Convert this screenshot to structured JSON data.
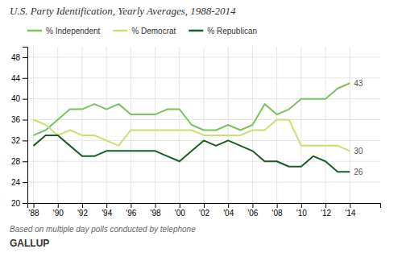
{
  "chart_data": {
    "type": "line",
    "title": "U.S. Party Identification, Yearly Averages, 1988-2014",
    "x": [
      1988,
      1989,
      1990,
      1991,
      1992,
      1993,
      1994,
      1995,
      1996,
      1997,
      1998,
      1999,
      2000,
      2001,
      2002,
      2003,
      2004,
      2005,
      2006,
      2007,
      2008,
      2009,
      2010,
      2011,
      2012,
      2013,
      2014
    ],
    "series": [
      {
        "name": "% Independent",
        "color": "#77c35c",
        "values": [
          33,
          34,
          36,
          38,
          38,
          39,
          38,
          39,
          37,
          37,
          37,
          38,
          38,
          35,
          34,
          34,
          35,
          34,
          35,
          39,
          37,
          38,
          40,
          40,
          40,
          42,
          43
        ]
      },
      {
        "name": "% Democrat",
        "color": "#c8e06e",
        "values": [
          36,
          35,
          33,
          34,
          33,
          33,
          32,
          31,
          34,
          34,
          34,
          34,
          34,
          34,
          33,
          33,
          33,
          33,
          34,
          34,
          36,
          36,
          31,
          31,
          31,
          31,
          30
        ]
      },
      {
        "name": "% Republican",
        "color": "#1a5c2a",
        "values": [
          31,
          33,
          33,
          31,
          29,
          29,
          30,
          30,
          30,
          30,
          30,
          29,
          28,
          30,
          32,
          31,
          32,
          31,
          30,
          28,
          28,
          27,
          27,
          29,
          28,
          26,
          26
        ]
      }
    ],
    "xlim": [
      1987.5,
      2016.5
    ],
    "xticks": [
      {
        "value": 1988,
        "label": "'88"
      },
      {
        "value": 1990,
        "label": "'90"
      },
      {
        "value": 1992,
        "label": "'92"
      },
      {
        "value": 1994,
        "label": "'94"
      },
      {
        "value": 1996,
        "label": "'96"
      },
      {
        "value": 1998,
        "label": "'98"
      },
      {
        "value": 2000,
        "label": "'00"
      },
      {
        "value": 2002,
        "label": "'02"
      },
      {
        "value": 2004,
        "label": "'04"
      },
      {
        "value": 2006,
        "label": "'06"
      },
      {
        "value": 2008,
        "label": "'08"
      },
      {
        "value": 2010,
        "label": "'10"
      },
      {
        "value": 2012,
        "label": "'12"
      },
      {
        "value": 2014,
        "label": "'14"
      }
    ],
    "ylim": [
      20,
      50
    ],
    "yticks": [
      20,
      24,
      28,
      32,
      36,
      40,
      44,
      48
    ],
    "grid": true,
    "legend": "top",
    "annotations": [
      {
        "text": "43",
        "x": 2014,
        "y": 43
      },
      {
        "text": "30",
        "x": 2014,
        "y": 30
      },
      {
        "text": "26",
        "x": 2014,
        "y": 26
      },
      {
        "text": "Based on multiple day polls conducted by telephone"
      },
      {
        "text": "GALLUP"
      }
    ]
  }
}
